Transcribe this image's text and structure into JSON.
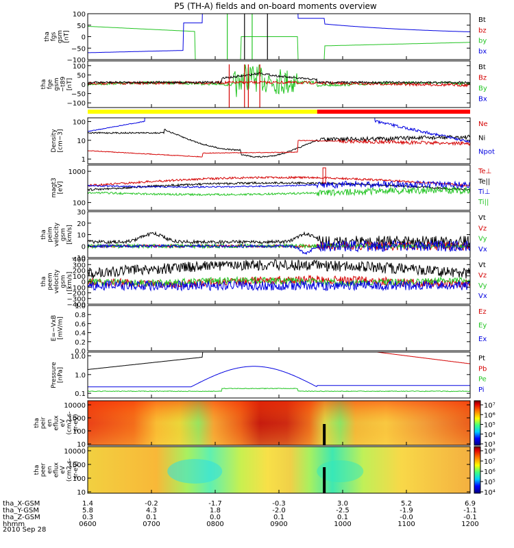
{
  "title": "P5 (TH-A) fields and on-board moments overview",
  "date": "2010 Sep 28",
  "orbit": {
    "rows": [
      {
        "label": "tha_X-GSM",
        "values": [
          "1.4",
          "-0.2",
          "-1.7",
          "-0.3",
          "3.0",
          "5.2",
          "6.9"
        ]
      },
      {
        "label": "tha_Y-GSM",
        "values": [
          "5.8",
          "4.3",
          "1.8",
          "-2.0",
          "-2.5",
          "-1.9",
          "-1.1"
        ]
      },
      {
        "label": "tha_Z-GSM",
        "values": [
          "0.3",
          "0.1",
          "0.0",
          "0.1",
          "0.1",
          "-0.0",
          "-0.1"
        ]
      },
      {
        "label": "hhmm",
        "values": [
          "0600",
          "0700",
          "0800",
          "0900",
          "1000",
          "1100",
          "1200"
        ]
      }
    ]
  },
  "chart_data": [
    {
      "type": "line",
      "ylabel_lines": [
        "tha",
        "fgs",
        "gsm",
        "[nT]"
      ],
      "ylim": [
        -100,
        100
      ],
      "ticks": [
        "100",
        "50",
        "0",
        "−50",
        "−100"
      ],
      "tick_values": [
        100,
        50,
        0,
        -50,
        -100
      ],
      "legend": [
        {
          "name": "Bt",
          "color": "#000000"
        },
        {
          "name": "bz",
          "color": "#d40000"
        },
        {
          "name": "by",
          "color": "#22c422"
        },
        {
          "name": "bx",
          "color": "#0000e0"
        }
      ]
    },
    {
      "type": "line",
      "ylabel_lines": [
        "tha",
        "fge",
        "gsm",
        "−t89",
        "[nT]"
      ],
      "ylim": [
        -125,
        125
      ],
      "ticks": [
        "100",
        "50",
        "0",
        "−50",
        "−100"
      ],
      "tick_values": [
        100,
        50,
        0,
        -50,
        -100
      ],
      "legend": [
        {
          "name": "Bt",
          "color": "#000000"
        },
        {
          "name": "Bz",
          "color": "#d40000"
        },
        {
          "name": "By",
          "color": "#22c422"
        },
        {
          "name": "Bx",
          "color": "#0000e0"
        }
      ]
    },
    {
      "type": "line",
      "scale": "log",
      "ylabel_lines": [
        "Density",
        "[cm−3]"
      ],
      "ticks": [
        "100",
        "10",
        "1"
      ],
      "tick_values": [
        100,
        10,
        1
      ],
      "legend": [
        {
          "name": "Ne",
          "color": "#d40000"
        },
        {
          "name": "Ni",
          "color": "#000000"
        },
        {
          "name": "Npot",
          "color": "#0000e0"
        }
      ]
    },
    {
      "type": "line",
      "scale": "log",
      "ylabel_lines": [
        "magt3",
        "[eV]"
      ],
      "ticks": [
        "1000",
        "100"
      ],
      "tick_values": [
        1000,
        100
      ],
      "legend": [
        {
          "name": "Te⊥",
          "color": "#d40000"
        },
        {
          "name": "Te||",
          "color": "#000000"
        },
        {
          "name": "Ti⊥",
          "color": "#0000e0"
        },
        {
          "name": "Ti||",
          "color": "#22c422"
        }
      ]
    },
    {
      "type": "line",
      "ylabel_lines": [
        "tha",
        "peim",
        "velocity",
        "gsm",
        "[km/s]"
      ],
      "ylim": [
        -10,
        30
      ],
      "ticks": [
        "30",
        "20",
        "10",
        "0",
        "−10"
      ],
      "tick_values": [
        30,
        20,
        10,
        0,
        -10
      ],
      "legend": [
        {
          "name": "Vt",
          "color": "#000000"
        },
        {
          "name": "Vz",
          "color": "#d40000"
        },
        {
          "name": "Vy",
          "color": "#22c422"
        },
        {
          "name": "Vx",
          "color": "#0000e0"
        }
      ]
    },
    {
      "type": "line",
      "ylabel_lines": [
        "tha",
        "peem",
        "velocity",
        "gsm",
        "[km/s]"
      ],
      "ylim": [
        -400,
        400
      ],
      "ticks": [
        "400",
        "300",
        "200",
        "100",
        "0",
        "−100",
        "−200",
        "−300",
        "−400"
      ],
      "tick_values": [
        400,
        300,
        200,
        100,
        0,
        -100,
        -200,
        -300,
        -400
      ],
      "legend": [
        {
          "name": "Vt",
          "color": "#000000"
        },
        {
          "name": "Vz",
          "color": "#d40000"
        },
        {
          "name": "Vy",
          "color": "#22c422"
        },
        {
          "name": "Vx",
          "color": "#0000e0"
        }
      ]
    },
    {
      "type": "line",
      "ylabel_lines": [
        "E=−VxB",
        "[mV/m]"
      ],
      "ylim": [
        0,
        1
      ],
      "ticks": [
        "1.0",
        "0.8",
        "0.6",
        "0.4",
        "0.2",
        "0.0"
      ],
      "tick_values": [
        1.0,
        0.8,
        0.6,
        0.4,
        0.2,
        0.0
      ],
      "legend": [
        {
          "name": "Ez",
          "color": "#d40000"
        },
        {
          "name": "Ey",
          "color": "#22c422"
        },
        {
          "name": "Ex",
          "color": "#0000e0"
        }
      ]
    },
    {
      "type": "line",
      "scale": "log",
      "ylabel_lines": [
        "Pressure",
        "[nPa]"
      ],
      "ticks": [
        "10.0",
        "1.0",
        "0.1"
      ],
      "tick_values": [
        10,
        1,
        0.1
      ],
      "legend": [
        {
          "name": "Pt",
          "color": "#000000"
        },
        {
          "name": "Pb",
          "color": "#d40000"
        },
        {
          "name": "Pe",
          "color": "#22c422"
        },
        {
          "name": "Pi",
          "color": "#0000e0"
        }
      ]
    },
    {
      "type": "heatmap",
      "ylabel_lines": [
        "tha",
        "peir",
        "en",
        "eflux",
        "eV",
        "(cm2-s-",
        "sr-eV)"
      ],
      "ticks": [
        "10000",
        "1000",
        "100",
        "10"
      ],
      "tick_values": [
        10000,
        1000,
        100,
        10
      ],
      "colorbar_ticks": [
        "10⁷",
        "10⁶",
        "10⁵",
        "10⁴",
        "10³"
      ]
    },
    {
      "type": "heatmap",
      "ylabel_lines": [
        "tha",
        "peer",
        "en",
        "eflux",
        "eV",
        "(cm2-s-",
        "sr-eV)"
      ],
      "ticks": [
        "10000",
        "1000",
        "100",
        "10"
      ],
      "tick_values": [
        10000,
        1000,
        100,
        10
      ],
      "colorbar_ticks": [
        "10⁸",
        "10⁷",
        "10⁶",
        "10⁵",
        "10⁴"
      ]
    }
  ]
}
